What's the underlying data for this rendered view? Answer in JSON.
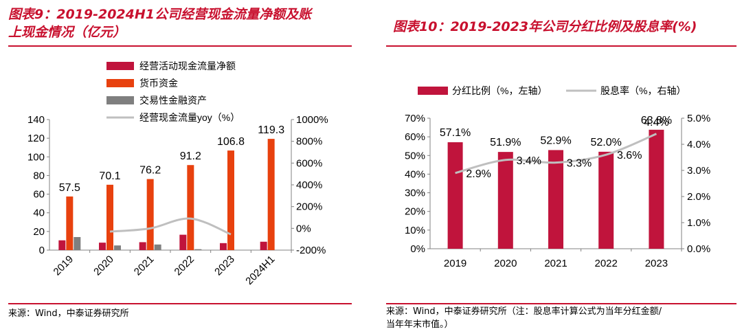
{
  "left": {
    "title_line1": "图表9：2019-2024H1公司经营现金流量净额及账",
    "title_line2": "上现金情况（亿元）",
    "source": "来源：Wind，中泰证券研究所"
  },
  "right": {
    "title": "图表10：2019-2023年公司分红比例及股息率(%)",
    "source_line1": "来源：Wind，中泰证券研究所（注：股息率计算公式为当年分红金额/",
    "source_line2": "当年年末市值。）"
  },
  "colors": {
    "accent_red": "#c8102e",
    "bar_dark_red": "#c0143c",
    "bar_orange": "#e8410e",
    "bar_gray": "#7f7f7f",
    "line_gray": "#bfbfbf"
  },
  "chart_data": [
    {
      "type": "bar",
      "categories": [
        "2019",
        "2020",
        "2021",
        "2022",
        "2023",
        "2024H1"
      ],
      "legend": [
        "经营活动现金流量净额",
        "货币资金",
        "交易性金融资产",
        "经营现金流量yoy（%）"
      ],
      "series": [
        {
          "name": "经营活动现金流量净额",
          "values": [
            10.5,
            8.0,
            8.5,
            16.5,
            7.5,
            9.0
          ]
        },
        {
          "name": "货币资金",
          "values": [
            57.5,
            70.1,
            76.2,
            91.2,
            106.8,
            119.3
          ]
        },
        {
          "name": "交易性金融资产",
          "values": [
            14.0,
            5.0,
            6.0,
            1.0,
            0,
            0
          ]
        },
        {
          "name": "经营现金流量yoy（%）",
          "axis": "right",
          "values": [
            null,
            -30,
            0,
            90,
            -55,
            null
          ]
        }
      ],
      "data_labels": [
        "57.5",
        "70.1",
        "76.2",
        "91.2",
        "106.8",
        "119.3"
      ],
      "y_left": {
        "range": [
          0,
          140
        ],
        "ticks": [
          "0",
          "20",
          "40",
          "60",
          "80",
          "100",
          "120",
          "140"
        ]
      },
      "y_right": {
        "range": [
          -200,
          1000
        ],
        "ticks": [
          "-200%",
          "0%",
          "200%",
          "400%",
          "600%",
          "800%",
          "1000%"
        ]
      }
    },
    {
      "type": "bar",
      "categories": [
        "2019",
        "2020",
        "2021",
        "2022",
        "2023"
      ],
      "legend": [
        "分红比例（%，左轴）",
        "股息率（%，右轴）"
      ],
      "series": [
        {
          "name": "分红比例（%，左轴）",
          "values": [
            57.1,
            51.9,
            52.9,
            52.0,
            63.8
          ]
        },
        {
          "name": "股息率（%，右轴）",
          "axis": "right",
          "values": [
            2.9,
            3.4,
            3.3,
            3.6,
            4.4
          ]
        }
      ],
      "bar_labels": [
        "57.1%",
        "51.9%",
        "52.9%",
        "52.0%",
        "63.8%"
      ],
      "line_labels": [
        "2.9%",
        "3.4%",
        "3.3%",
        "3.6%",
        "4.4%"
      ],
      "y_left": {
        "range": [
          0,
          70
        ],
        "ticks": [
          "0%",
          "10%",
          "20%",
          "30%",
          "40%",
          "50%",
          "60%",
          "70%"
        ]
      },
      "y_right": {
        "range": [
          0,
          5
        ],
        "ticks": [
          "0.0%",
          "1.0%",
          "2.0%",
          "3.0%",
          "4.0%",
          "5.0%"
        ]
      }
    }
  ]
}
